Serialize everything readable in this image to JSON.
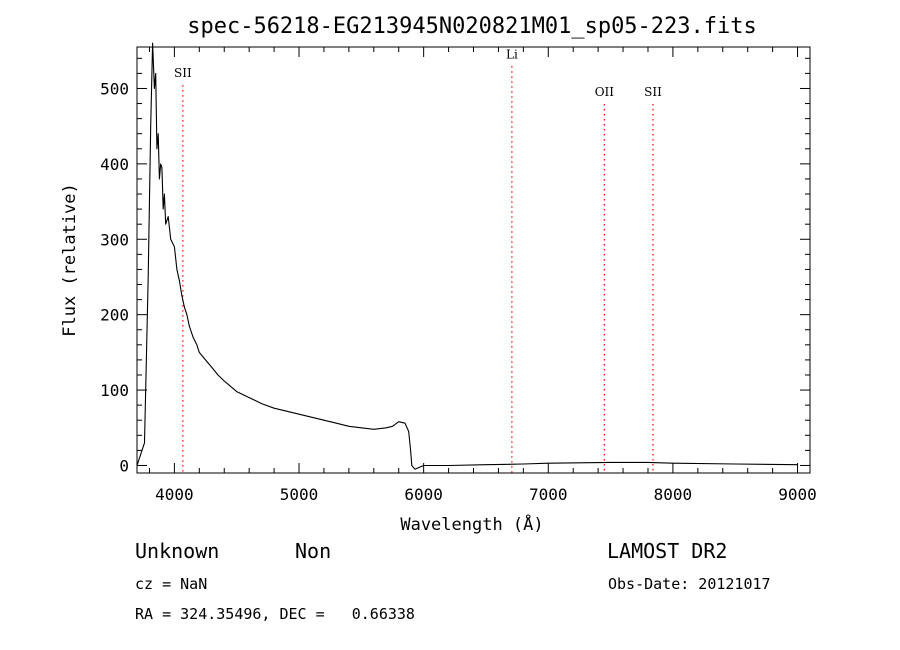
{
  "chart_data": {
    "type": "line",
    "title": "spec-56218-EG213945N020821M01_sp05-223.fits",
    "xlabel": "Wavelength (Å)",
    "ylabel": "Flux (relative)",
    "xlim": [
      3700,
      9100
    ],
    "ylim": [
      -10,
      555
    ],
    "xticks": [
      4000,
      5000,
      6000,
      7000,
      8000,
      9000
    ],
    "yticks": [
      0,
      100,
      200,
      300,
      400,
      500
    ],
    "grid": false,
    "series": [
      {
        "color": "#000000",
        "points": [
          [
            3700,
            0
          ],
          [
            3760,
            30
          ],
          [
            3790,
            250
          ],
          [
            3810,
            450
          ],
          [
            3825,
            560
          ],
          [
            3840,
            500
          ],
          [
            3850,
            520
          ],
          [
            3860,
            420
          ],
          [
            3870,
            440
          ],
          [
            3880,
            380
          ],
          [
            3890,
            400
          ],
          [
            3900,
            395
          ],
          [
            3910,
            340
          ],
          [
            3920,
            360
          ],
          [
            3930,
            320
          ],
          [
            3950,
            330
          ],
          [
            3970,
            300
          ],
          [
            4000,
            290
          ],
          [
            4020,
            260
          ],
          [
            4040,
            245
          ],
          [
            4060,
            225
          ],
          [
            4080,
            210
          ],
          [
            4100,
            200
          ],
          [
            4120,
            185
          ],
          [
            4150,
            170
          ],
          [
            4180,
            160
          ],
          [
            4200,
            150
          ],
          [
            4250,
            140
          ],
          [
            4300,
            130
          ],
          [
            4350,
            120
          ],
          [
            4400,
            112
          ],
          [
            4450,
            105
          ],
          [
            4500,
            98
          ],
          [
            4600,
            90
          ],
          [
            4700,
            82
          ],
          [
            4800,
            76
          ],
          [
            4900,
            72
          ],
          [
            5000,
            68
          ],
          [
            5100,
            64
          ],
          [
            5200,
            60
          ],
          [
            5300,
            56
          ],
          [
            5400,
            52
          ],
          [
            5500,
            50
          ],
          [
            5600,
            48
          ],
          [
            5700,
            50
          ],
          [
            5750,
            52
          ],
          [
            5800,
            58
          ],
          [
            5850,
            56
          ],
          [
            5880,
            45
          ],
          [
            5895,
            20
          ],
          [
            5905,
            0
          ],
          [
            5930,
            -5
          ],
          [
            6000,
            0
          ],
          [
            6200,
            0
          ],
          [
            6500,
            1
          ],
          [
            6800,
            2
          ],
          [
            7000,
            3
          ],
          [
            7500,
            4
          ],
          [
            7800,
            4
          ],
          [
            8000,
            3
          ],
          [
            8500,
            2
          ],
          [
            9000,
            1
          ]
        ]
      }
    ],
    "lines": [
      {
        "label": "SII",
        "x": 4068,
        "label_y": 515
      },
      {
        "label": "Li",
        "x": 6708,
        "label_y": 540
      },
      {
        "label": "OII",
        "x": 7450,
        "label_y": 490
      },
      {
        "label": "SII",
        "x": 7840,
        "label_y": 490
      }
    ],
    "line_color": "#ff0000"
  },
  "info": {
    "class_label": "Unknown",
    "subclass_label": "Non",
    "survey_label": "LAMOST DR2",
    "cz_text": "cz = NaN",
    "obs_date_text": "Obs-Date: 20121017",
    "coords_text": "RA = 324.35496, DEC =   0.66338"
  }
}
